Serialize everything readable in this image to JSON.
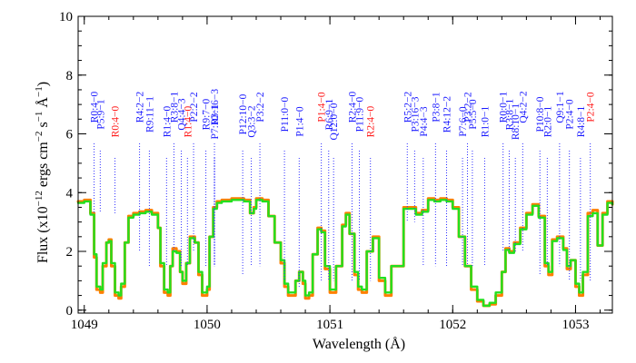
{
  "chart_data": {
    "type": "line",
    "title": "",
    "xlabel": "Wavelength (Å)",
    "ylabel": "Flux (x10",
    "ylabel_exp1": "−12",
    "ylabel_mid": " ergs cm",
    "ylabel_exp2": "−2",
    "ylabel_mid2": " s",
    "ylabel_exp3": "−1",
    "ylabel_mid3": " Å",
    "ylabel_exp4": "−1",
    "ylabel_end": ")",
    "xlim": [
      1048.95,
      1053.3
    ],
    "ylim": [
      -0.1,
      10
    ],
    "x_ticks": [
      1049,
      1050,
      1051,
      1052,
      1053
    ],
    "x_tick_labels": [
      "1049",
      "1050",
      "1051",
      "1052",
      "1053"
    ],
    "y_ticks": [
      0,
      2,
      4,
      6,
      8,
      10
    ],
    "y_tick_labels": [
      "0",
      "2",
      "4",
      "6",
      "8",
      "10"
    ],
    "colors": {
      "series_orange": "#ff7f00",
      "series_green": "#22e01e",
      "label_blue": "#1a1aff",
      "label_red": "#ff1a1a",
      "marker_line": "#3030ff"
    },
    "grid": false,
    "series": [
      {
        "color": "#ff7f00",
        "x": [
          1048.95,
          1049.0,
          1049.05,
          1049.08,
          1049.1,
          1049.13,
          1049.15,
          1049.18,
          1049.2,
          1049.22,
          1049.25,
          1049.28,
          1049.3,
          1049.33,
          1049.36,
          1049.4,
          1049.45,
          1049.5,
          1049.55,
          1049.6,
          1049.62,
          1049.65,
          1049.68,
          1049.7,
          1049.72,
          1049.75,
          1049.78,
          1049.8,
          1049.83,
          1049.86,
          1049.9,
          1049.93,
          1049.96,
          1050.0,
          1050.02,
          1050.05,
          1050.08,
          1050.12,
          1050.2,
          1050.3,
          1050.35,
          1050.38,
          1050.4,
          1050.45,
          1050.5,
          1050.55,
          1050.6,
          1050.63,
          1050.66,
          1050.69,
          1050.72,
          1050.75,
          1050.78,
          1050.8,
          1050.83,
          1050.86,
          1050.9,
          1050.93,
          1050.96,
          1051.0,
          1051.05,
          1051.1,
          1051.13,
          1051.16,
          1051.2,
          1051.23,
          1051.26,
          1051.3,
          1051.35,
          1051.4,
          1051.45,
          1051.5,
          1051.6,
          1051.65,
          1051.7,
          1051.75,
          1051.8,
          1051.85,
          1051.9,
          1051.95,
          1052.0,
          1052.05,
          1052.1,
          1052.15,
          1052.2,
          1052.25,
          1052.3,
          1052.35,
          1052.4,
          1052.43,
          1052.46,
          1052.5,
          1052.55,
          1052.6,
          1052.65,
          1052.7,
          1052.75,
          1052.78,
          1052.81,
          1052.85,
          1052.9,
          1052.93,
          1052.96,
          1053.0,
          1053.03,
          1053.06,
          1053.1,
          1053.14,
          1053.18,
          1053.22,
          1053.26,
          1053.3
        ],
        "y": [
          3.7,
          3.75,
          3.3,
          1.8,
          0.7,
          0.6,
          1.5,
          2.3,
          2.4,
          1.5,
          0.5,
          0.4,
          0.8,
          2.3,
          3.2,
          3.3,
          3.35,
          3.4,
          3.3,
          2.8,
          1.5,
          0.6,
          0.5,
          1.5,
          2.1,
          2.0,
          1.3,
          0.9,
          1.6,
          2.5,
          2.3,
          1.2,
          0.5,
          0.7,
          2.5,
          3.5,
          3.7,
          3.75,
          3.8,
          3.75,
          3.3,
          3.5,
          3.8,
          3.75,
          3.2,
          2.3,
          1.6,
          0.8,
          0.5,
          0.5,
          1.0,
          1.3,
          0.9,
          0.4,
          0.5,
          1.9,
          2.8,
          2.7,
          1.4,
          0.6,
          1.5,
          2.9,
          3.3,
          2.6,
          1.2,
          0.7,
          0.6,
          2.0,
          2.5,
          1.0,
          0.5,
          1.5,
          3.5,
          3.5,
          3.3,
          3.4,
          3.8,
          3.75,
          3.8,
          3.75,
          3.5,
          2.5,
          1.5,
          0.7,
          0.3,
          0.15,
          0.2,
          0.5,
          1.3,
          2.1,
          2.0,
          2.3,
          2.8,
          3.3,
          3.6,
          3.2,
          1.5,
          1.2,
          2.4,
          2.5,
          2.1,
          1.4,
          1.7,
          0.8,
          0.5,
          1.2,
          3.3,
          3.4,
          2.2,
          3.3,
          3.7,
          3.6
        ]
      },
      {
        "color": "#22e01e",
        "x": [
          1048.95,
          1049.0,
          1049.05,
          1049.08,
          1049.1,
          1049.13,
          1049.15,
          1049.18,
          1049.2,
          1049.22,
          1049.25,
          1049.28,
          1049.3,
          1049.33,
          1049.36,
          1049.4,
          1049.45,
          1049.5,
          1049.55,
          1049.6,
          1049.62,
          1049.65,
          1049.68,
          1049.7,
          1049.72,
          1049.75,
          1049.78,
          1049.8,
          1049.83,
          1049.86,
          1049.9,
          1049.93,
          1049.96,
          1050.0,
          1050.02,
          1050.05,
          1050.08,
          1050.12,
          1050.2,
          1050.3,
          1050.35,
          1050.38,
          1050.4,
          1050.45,
          1050.5,
          1050.55,
          1050.6,
          1050.63,
          1050.66,
          1050.69,
          1050.72,
          1050.75,
          1050.78,
          1050.8,
          1050.83,
          1050.86,
          1050.9,
          1050.93,
          1050.96,
          1051.0,
          1051.05,
          1051.1,
          1051.13,
          1051.16,
          1051.2,
          1051.23,
          1051.26,
          1051.3,
          1051.35,
          1051.4,
          1051.45,
          1051.5,
          1051.6,
          1051.65,
          1051.7,
          1051.75,
          1051.8,
          1051.85,
          1051.9,
          1051.95,
          1052.0,
          1052.05,
          1052.1,
          1052.15,
          1052.2,
          1052.25,
          1052.3,
          1052.35,
          1052.4,
          1052.43,
          1052.46,
          1052.5,
          1052.55,
          1052.6,
          1052.65,
          1052.7,
          1052.75,
          1052.78,
          1052.81,
          1052.85,
          1052.9,
          1052.93,
          1052.96,
          1053.0,
          1053.03,
          1053.06,
          1053.1,
          1053.14,
          1053.18,
          1053.22,
          1053.26,
          1053.3
        ],
        "y": [
          3.65,
          3.7,
          3.25,
          1.9,
          0.8,
          0.7,
          1.6,
          2.3,
          2.35,
          1.6,
          0.6,
          0.5,
          0.9,
          2.3,
          3.15,
          3.25,
          3.3,
          3.35,
          3.25,
          2.8,
          1.6,
          0.7,
          0.6,
          1.5,
          2.0,
          1.95,
          1.3,
          1.0,
          1.6,
          2.45,
          2.3,
          1.3,
          0.6,
          0.8,
          2.5,
          3.45,
          3.65,
          3.7,
          3.75,
          3.7,
          3.3,
          3.45,
          3.75,
          3.7,
          3.2,
          2.3,
          1.7,
          0.9,
          0.6,
          0.6,
          1.0,
          1.3,
          1.0,
          0.5,
          0.6,
          1.9,
          2.75,
          2.65,
          1.5,
          0.7,
          1.5,
          2.85,
          3.25,
          2.6,
          1.3,
          0.8,
          0.7,
          2.0,
          2.45,
          1.1,
          0.6,
          1.5,
          3.45,
          3.45,
          3.25,
          3.35,
          3.75,
          3.7,
          3.75,
          3.7,
          3.45,
          2.5,
          1.5,
          0.8,
          0.35,
          0.15,
          0.25,
          0.6,
          1.3,
          2.05,
          1.95,
          2.25,
          2.75,
          3.25,
          3.55,
          3.15,
          1.6,
          1.3,
          2.35,
          2.45,
          2.05,
          1.5,
          1.7,
          0.9,
          0.6,
          1.3,
          3.2,
          3.3,
          2.2,
          3.25,
          3.65,
          3.6
        ]
      }
    ],
    "line_labels": [
      {
        "text": "R0:4−0",
        "x": 1049.08,
        "color": "blue",
        "y_bottom": 3.3
      },
      {
        "text": "P5:9−1",
        "x": 1049.13,
        "color": "blue",
        "y_bottom": 3.3
      },
      {
        "text": "R0:4−0",
        "x": 1049.25,
        "color": "red",
        "y_bottom": 3.3
      },
      {
        "text": "R4:2−2",
        "x": 1049.45,
        "color": "blue",
        "y_bottom": 2.0
      },
      {
        "text": "R9:11−1",
        "x": 1049.53,
        "color": "blue",
        "y_bottom": 1.5
      },
      {
        "text": "R1:4−0",
        "x": 1049.67,
        "color": "blue",
        "y_bottom": 1.5
      },
      {
        "text": "R3:8−1",
        "x": 1049.73,
        "color": "blue",
        "y_bottom": 2.0
      },
      {
        "text": "Q4:4−3",
        "x": 1049.79,
        "color": "blue",
        "y_bottom": 1.5
      },
      {
        "text": "R1:4−0",
        "x": 1049.84,
        "color": "red",
        "y_bottom": 1.5
      },
      {
        "text": "P2:2−2",
        "x": 1049.89,
        "color": "blue",
        "y_bottom": 2.0
      },
      {
        "text": "R9:7−0",
        "x": 1049.99,
        "color": "blue",
        "y_bottom": 1.5
      },
      {
        "text": "P7:10−1",
        "x": 1050.06,
        "color": "blue",
        "y_bottom": 1.5
      },
      {
        "text": "R3:16−3",
        "x": 1050.06,
        "color": "blue",
        "y_bottom": 1.5
      },
      {
        "text": "P12:10−0",
        "x": 1050.29,
        "color": "blue",
        "y_bottom": 1.2
      },
      {
        "text": "Q3:3−2",
        "x": 1050.36,
        "color": "blue",
        "y_bottom": 1.5
      },
      {
        "text": "P3:2−2",
        "x": 1050.43,
        "color": "blue",
        "y_bottom": 1.5
      },
      {
        "text": "P11:0−0",
        "x": 1050.63,
        "color": "blue",
        "y_bottom": 1.0
      },
      {
        "text": "P1:4−0",
        "x": 1050.75,
        "color": "blue",
        "y_bottom": 0.8
      },
      {
        "text": "P1:4−0",
        "x": 1050.93,
        "color": "red",
        "y_bottom": 1.0
      },
      {
        "text": "R6:9−1",
        "x": 1050.99,
        "color": "blue",
        "y_bottom": 1.0
      },
      {
        "text": "Q12:0−0",
        "x": 1051.03,
        "color": "blue",
        "y_bottom": 1.0
      },
      {
        "text": "R2:4−0",
        "x": 1051.18,
        "color": "blue",
        "y_bottom": 1.0
      },
      {
        "text": "P11:9−0",
        "x": 1051.24,
        "color": "blue",
        "y_bottom": 1.0
      },
      {
        "text": "R2:4−0",
        "x": 1051.33,
        "color": "red",
        "y_bottom": 1.0
      },
      {
        "text": "R5:2−2",
        "x": 1051.63,
        "color": "blue",
        "y_bottom": 3.0
      },
      {
        "text": "P3:16−3",
        "x": 1051.69,
        "color": "blue",
        "y_bottom": 3.0
      },
      {
        "text": "P4:4−3",
        "x": 1051.76,
        "color": "blue",
        "y_bottom": 1.5
      },
      {
        "text": "P3:8−1",
        "x": 1051.86,
        "color": "blue",
        "y_bottom": 1.5
      },
      {
        "text": "R4:12−2",
        "x": 1051.95,
        "color": "blue",
        "y_bottom": 1.5
      },
      {
        "text": "P7:6−0",
        "x": 1052.08,
        "color": "blue",
        "y_bottom": 1.5
      },
      {
        "text": "P3:2−2",
        "x": 1052.12,
        "color": "blue",
        "y_bottom": 1.5
      },
      {
        "text": "P5:5−0",
        "x": 1052.16,
        "color": "blue",
        "y_bottom": 1.5
      },
      {
        "text": "R1:0−1",
        "x": 1052.26,
        "color": "blue",
        "y_bottom": 1.5
      },
      {
        "text": "R0:0−1",
        "x": 1052.41,
        "color": "blue",
        "y_bottom": 2.0
      },
      {
        "text": "R3:8−1",
        "x": 1052.46,
        "color": "blue",
        "y_bottom": 2.0
      },
      {
        "text": "R8:10−1",
        "x": 1052.51,
        "color": "blue",
        "y_bottom": 2.0
      },
      {
        "text": "Q4:2−2",
        "x": 1052.57,
        "color": "blue",
        "y_bottom": 2.0
      },
      {
        "text": "P10:8−0",
        "x": 1052.71,
        "color": "blue",
        "y_bottom": 1.2
      },
      {
        "text": "R2:0−1",
        "x": 1052.77,
        "color": "blue",
        "y_bottom": 1.5
      },
      {
        "text": "Q9:1−1",
        "x": 1052.87,
        "color": "blue",
        "y_bottom": 1.5
      },
      {
        "text": "P2:4−0",
        "x": 1052.95,
        "color": "blue",
        "y_bottom": 1.0
      },
      {
        "text": "R4:8−1",
        "x": 1053.04,
        "color": "blue",
        "y_bottom": 1.0
      },
      {
        "text": "P2:4−0",
        "x": 1053.12,
        "color": "red",
        "y_bottom": 1.0
      }
    ]
  }
}
